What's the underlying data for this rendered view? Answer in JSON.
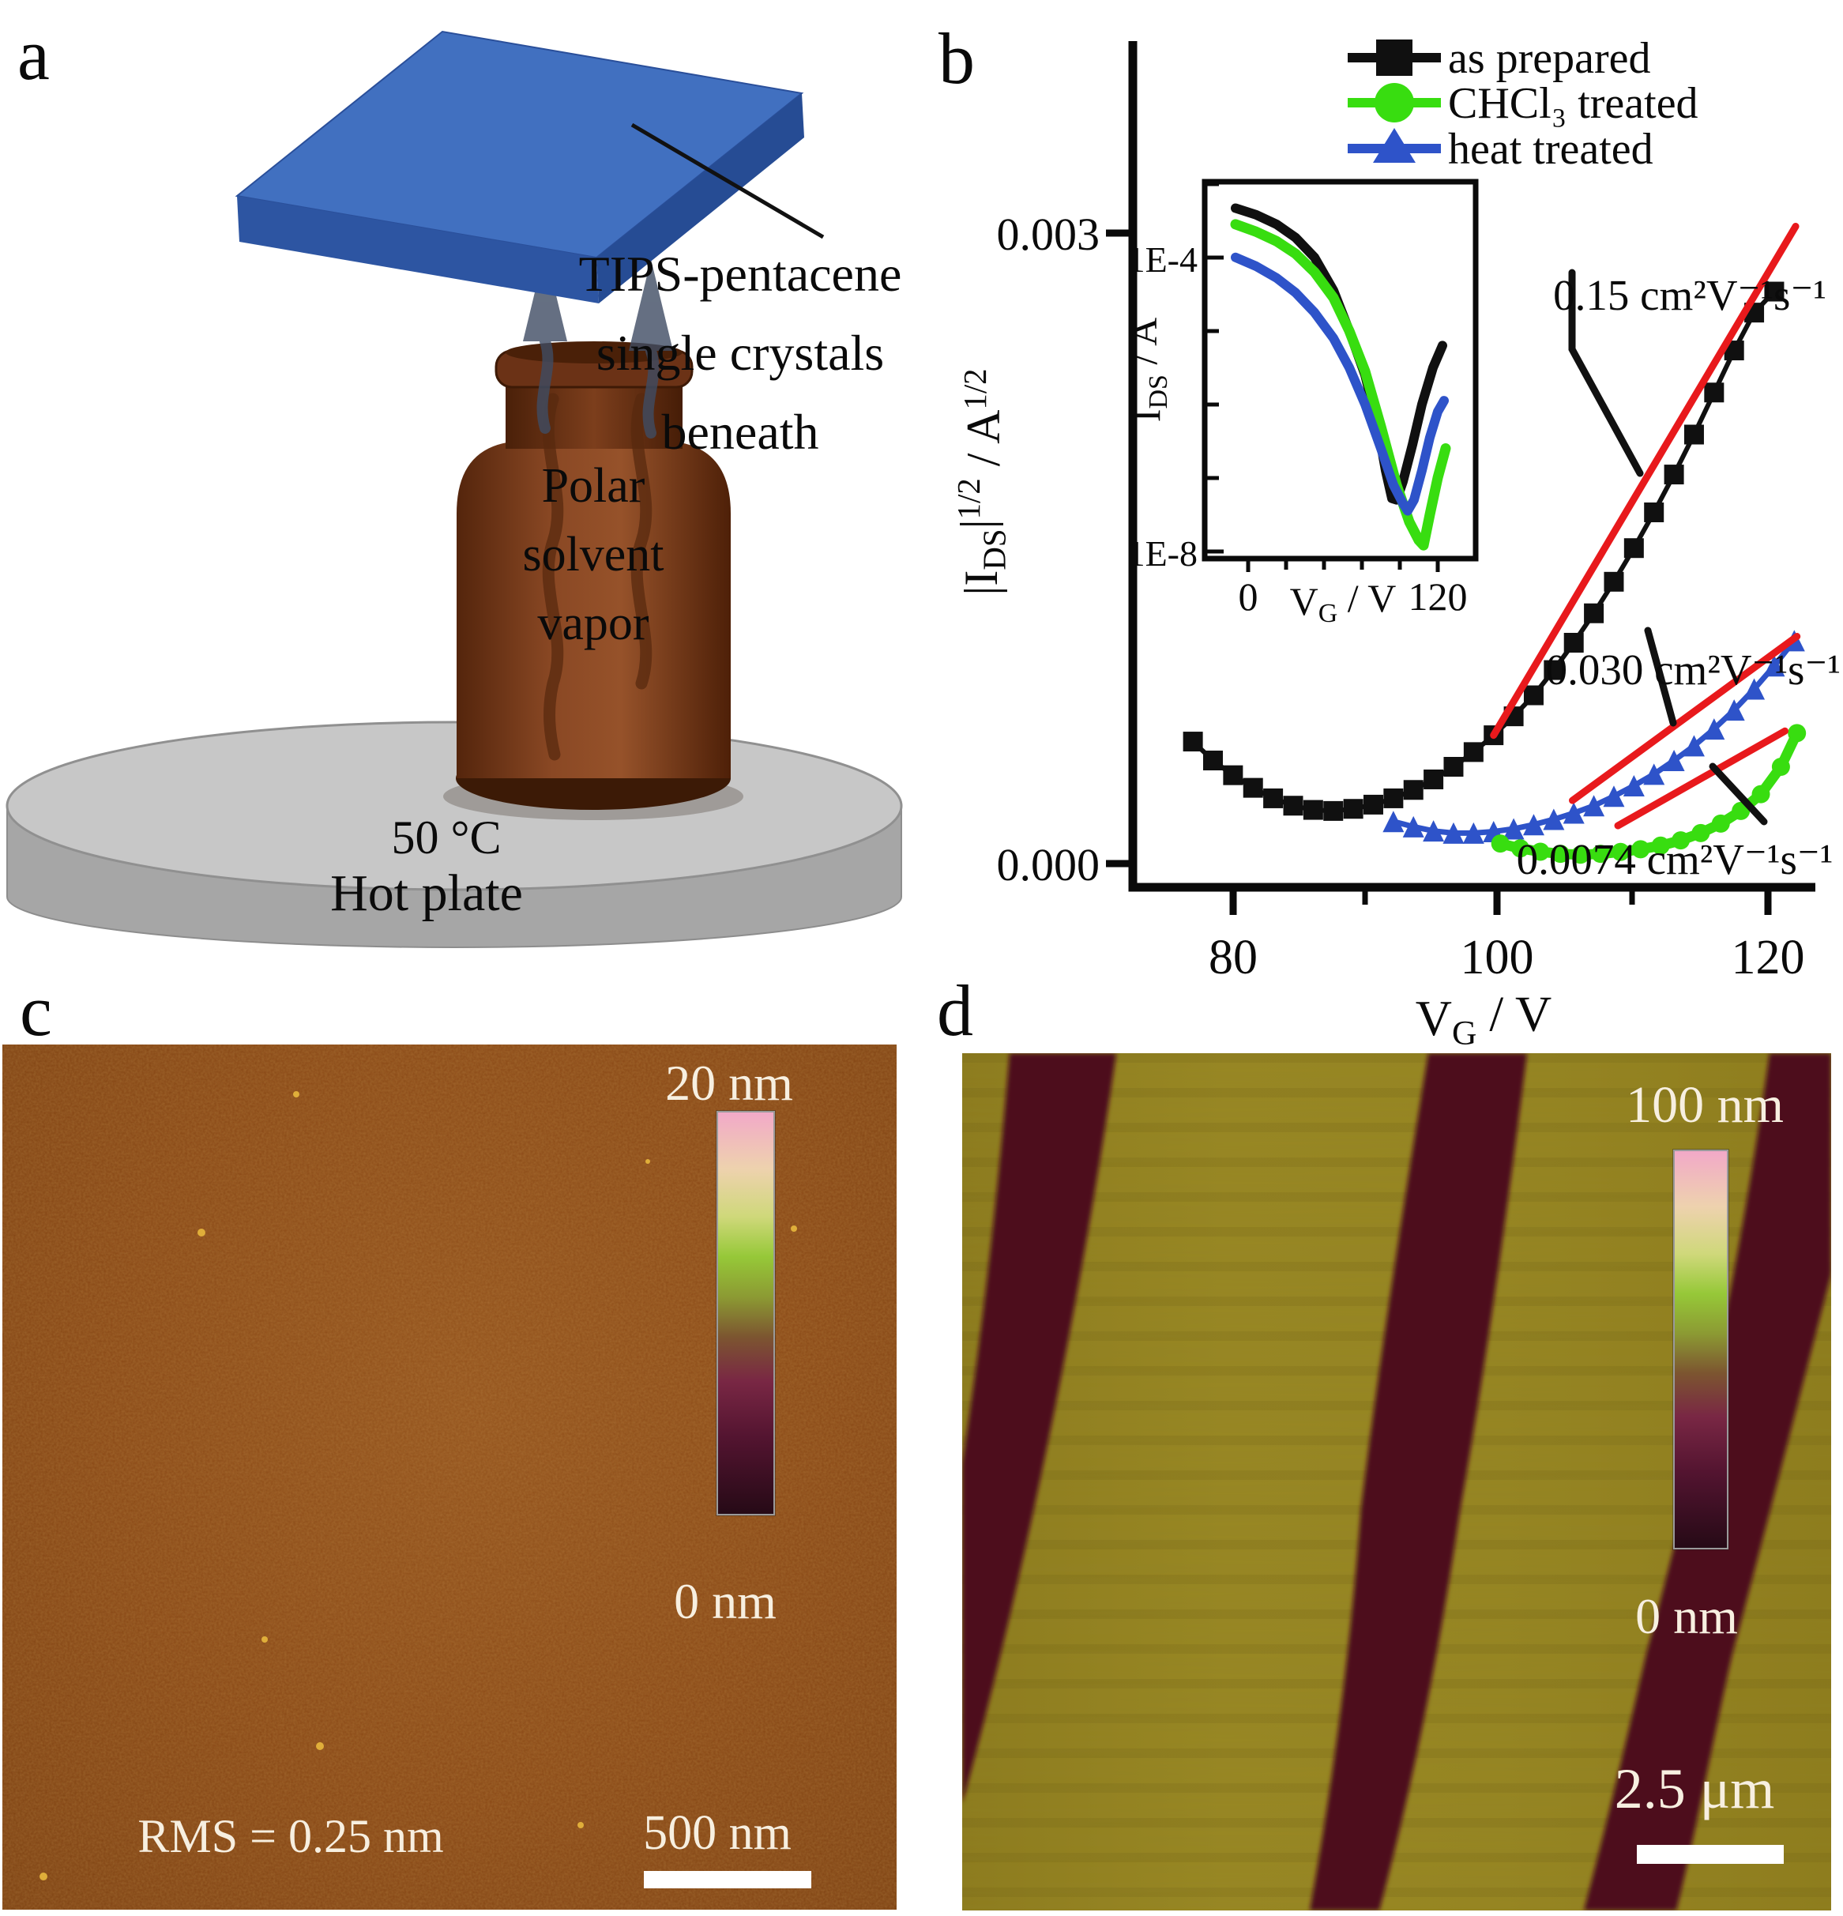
{
  "panel_a": {
    "label": "a",
    "annotation_lines": [
      "TIPS-pentacene",
      "single crystals",
      "beneath"
    ],
    "bottle_lines": [
      "Polar",
      "solvent",
      "vapor"
    ],
    "temperature": "50 °C",
    "hotplate_label": "Hot plate",
    "colors": {
      "slab_top": "#4170c0",
      "slab_front": "#2d55a2",
      "slab_side": "#264c94",
      "bottle_mid": "#8a4824",
      "bottle_edge": "#54250c",
      "bottle_bottom": "#3c1a06",
      "plate_top": "#c7c7c7",
      "plate_side": "#a6a6a6",
      "vapor_arrow": "#3f4c63"
    }
  },
  "panel_b": {
    "label": "b",
    "legend": [
      {
        "name": "as prepared",
        "color": "#101010",
        "marker": "square"
      },
      {
        "name": "CHCl₃ treated",
        "color": "#38dd10",
        "marker": "circle"
      },
      {
        "name": "heat treated",
        "color": "#2e53c9",
        "marker": "triangle"
      }
    ],
    "annotations": [
      "0.15 cm²V⁻¹s⁻¹",
      "0.030 cm²V⁻¹s⁻¹",
      "0.0074 cm²V⁻¹s⁻¹"
    ]
  },
  "panel_c": {
    "label": "c",
    "scale_top": "20 nm",
    "scale_bottom": "0 nm",
    "rms": "RMS = 0.25 nm",
    "scalebar_label": "500 nm",
    "base_color": "#8a4613"
  },
  "panel_d": {
    "label": "d",
    "scale_top": "100 nm",
    "scale_bottom": "0 nm",
    "scalebar_label": "2.5 μm",
    "base_color": "#968521",
    "stripe_color": "#4d0c1b"
  },
  "chart_data": {
    "type": "line",
    "title": "",
    "main": {
      "xlabel_parts": [
        {
          "t": "V"
        },
        {
          "t": "G",
          "s": "sub"
        },
        {
          "t": " / V"
        }
      ],
      "ylabel_parts": [
        {
          "t": "|I"
        },
        {
          "t": "DS",
          "s": "sub"
        },
        {
          "t": "|"
        },
        {
          "t": "1/2",
          "s": "sup"
        },
        {
          "t": " / A"
        },
        {
          "t": "1/2",
          "s": "sup"
        }
      ],
      "xlim": [
        72.5,
        123.4
      ],
      "ylim": [
        -0.000113,
        0.0039
      ],
      "xtick_labels": [
        "80",
        "100",
        "120"
      ],
      "ytick_labels": [
        "0.003",
        "0.000"
      ],
      "legend_position": "top-right",
      "grid": false,
      "series": [
        {
          "name": "as prepared",
          "color": "#101010",
          "marker": "square",
          "marker_size": 25,
          "line_width": 6,
          "points": [
            [
              77,
              0.00058
            ],
            [
              78.5,
              0.00049
            ],
            [
              80,
              0.00042
            ],
            [
              81.5,
              0.00036
            ],
            [
              83,
              0.00031
            ],
            [
              84.5,
              0.000275
            ],
            [
              86,
              0.000255
            ],
            [
              87.5,
              0.00025
            ],
            [
              89,
              0.00026
            ],
            [
              90.5,
              0.00028
            ],
            [
              92,
              0.00031
            ],
            [
              93.5,
              0.00035
            ],
            [
              95,
              0.0004
            ],
            [
              96.5,
              0.00046
            ],
            [
              98,
              0.00053
            ],
            [
              99.5,
              0.00061
            ],
            [
              101,
              0.0007
            ],
            [
              102.5,
              0.0008
            ],
            [
              104,
              0.00092
            ],
            [
              105.5,
              0.00105
            ],
            [
              107,
              0.00119
            ],
            [
              108.5,
              0.00134
            ],
            [
              110,
              0.0015
            ],
            [
              111.5,
              0.00167
            ],
            [
              113,
              0.00185
            ],
            [
              114.5,
              0.00204
            ],
            [
              116,
              0.00224
            ],
            [
              117.5,
              0.00244
            ],
            [
              119,
              0.00262
            ],
            [
              120.5,
              0.00272
            ]
          ]
        },
        {
          "name": "heat treated",
          "color": "#2e53c9",
          "marker": "triangle",
          "marker_size": 27,
          "line_width": 7,
          "points": [
            [
              92,
              0.0002
            ],
            [
              93.5,
              0.000175
            ],
            [
              95,
              0.000155
            ],
            [
              96.5,
              0.000145
            ],
            [
              98,
              0.000145
            ],
            [
              99.5,
              0.000152
            ],
            [
              101,
              0.000165
            ],
            [
              102.5,
              0.000185
            ],
            [
              104,
              0.00021
            ],
            [
              105.5,
              0.00024
            ],
            [
              107,
              0.000275
            ],
            [
              108.5,
              0.00032
            ],
            [
              110,
              0.00037
            ],
            [
              111.5,
              0.000425
            ],
            [
              113,
              0.00049
            ],
            [
              114.5,
              0.00056
            ],
            [
              116,
              0.00064
            ],
            [
              117.5,
              0.00073
            ],
            [
              119,
              0.00083
            ],
            [
              120.5,
              0.00094
            ],
            [
              122,
              0.00106
            ]
          ]
        },
        {
          "name": "CHCl₃ treated",
          "color": "#38dd10",
          "marker": "circle",
          "marker_size": 23,
          "line_width": 13,
          "points": [
            [
              100,
              9.5e-05
            ],
            [
              101.5,
              7.2e-05
            ],
            [
              103,
              5.6e-05
            ],
            [
              104.5,
              4.6e-05
            ],
            [
              106,
              4.2e-05
            ],
            [
              107.5,
              4.6e-05
            ],
            [
              109,
              5.5e-05
            ],
            [
              110.5,
              6.8e-05
            ],
            [
              112,
              8.5e-05
            ],
            [
              113.5,
              0.00011
            ],
            [
              115,
              0.000145
            ],
            [
              116.5,
              0.00019
            ],
            [
              118,
              0.00025
            ],
            [
              119.5,
              0.00033
            ],
            [
              121,
              0.00046
            ],
            [
              122.2,
              0.00062
            ]
          ]
        }
      ],
      "fits": [
        {
          "label": "0.15 cm²V⁻¹s⁻¹",
          "color": "#e8191c",
          "width": 9,
          "from": [
            99.5,
            0.00061
          ],
          "to": [
            122.1,
            0.00303
          ]
        },
        {
          "label": "0.030 cm²V⁻¹s⁻¹",
          "color": "#e8191c",
          "width": 9,
          "from": [
            105.4,
            0.0003
          ],
          "to": [
            122.2,
            0.00108
          ]
        },
        {
          "label": "0.0074 cm²V⁻¹s⁻¹",
          "color": "#e8191c",
          "width": 9,
          "from": [
            108.8,
            0.00018
          ],
          "to": [
            121.3,
            0.00063
          ]
        }
      ]
    },
    "inset": {
      "xlabel_parts": [
        {
          "t": "V"
        },
        {
          "t": "G",
          "s": "sub"
        },
        {
          "t": " / V"
        }
      ],
      "ylabel_parts": [
        {
          "t": "I"
        },
        {
          "t": "DS",
          "s": "sub"
        },
        {
          "t": " / A"
        }
      ],
      "xlim": [
        -27.5,
        144
      ],
      "ylim_log10": [
        -8.1,
        -2.97
      ],
      "xtick_labels": [
        "0",
        "120"
      ],
      "ytick_labels": [
        "1E-4",
        "1E-8"
      ],
      "grid": false,
      "series": [
        {
          "name": "as prepared",
          "color": "#101010",
          "line_width": 12,
          "points_log10": [
            [
              -8,
              -3.33
            ],
            [
              5,
              -3.42
            ],
            [
              18,
              -3.55
            ],
            [
              30,
              -3.73
            ],
            [
              42,
              -4.0
            ],
            [
              54,
              -4.45
            ],
            [
              64,
              -5.0
            ],
            [
              74,
              -5.6
            ],
            [
              82,
              -6.3
            ],
            [
              87,
              -6.9
            ],
            [
              91,
              -7.28
            ],
            [
              94,
              -7.3
            ],
            [
              98,
              -7.05
            ],
            [
              104,
              -6.55
            ],
            [
              110,
              -6.0
            ],
            [
              117,
              -5.5
            ],
            [
              123,
              -5.2
            ]
          ]
        },
        {
          "name": "CHCl₃ treated",
          "color": "#38dd10",
          "line_width": 13,
          "points_log10": [
            [
              -8,
              -3.55
            ],
            [
              5,
              -3.65
            ],
            [
              18,
              -3.78
            ],
            [
              30,
              -3.95
            ],
            [
              42,
              -4.2
            ],
            [
              54,
              -4.55
            ],
            [
              64,
              -5.0
            ],
            [
              74,
              -5.55
            ],
            [
              84,
              -6.3
            ],
            [
              94,
              -7.1
            ],
            [
              102,
              -7.6
            ],
            [
              108,
              -7.85
            ],
            [
              111,
              -7.92
            ],
            [
              115,
              -7.5
            ],
            [
              120,
              -7.0
            ],
            [
              125,
              -6.6
            ]
          ]
        },
        {
          "name": "heat treated",
          "color": "#2e53c9",
          "line_width": 12,
          "points_log10": [
            [
              -8,
              -4.0
            ],
            [
              5,
              -4.12
            ],
            [
              18,
              -4.28
            ],
            [
              30,
              -4.48
            ],
            [
              42,
              -4.75
            ],
            [
              54,
              -5.1
            ],
            [
              64,
              -5.5
            ],
            [
              74,
              -6.0
            ],
            [
              84,
              -6.6
            ],
            [
              92,
              -7.1
            ],
            [
              98,
              -7.35
            ],
            [
              101,
              -7.45
            ],
            [
              105,
              -7.3
            ],
            [
              110,
              -6.9
            ],
            [
              115,
              -6.45
            ],
            [
              120,
              -6.1
            ],
            [
              124,
              -5.95
            ]
          ]
        }
      ]
    }
  }
}
